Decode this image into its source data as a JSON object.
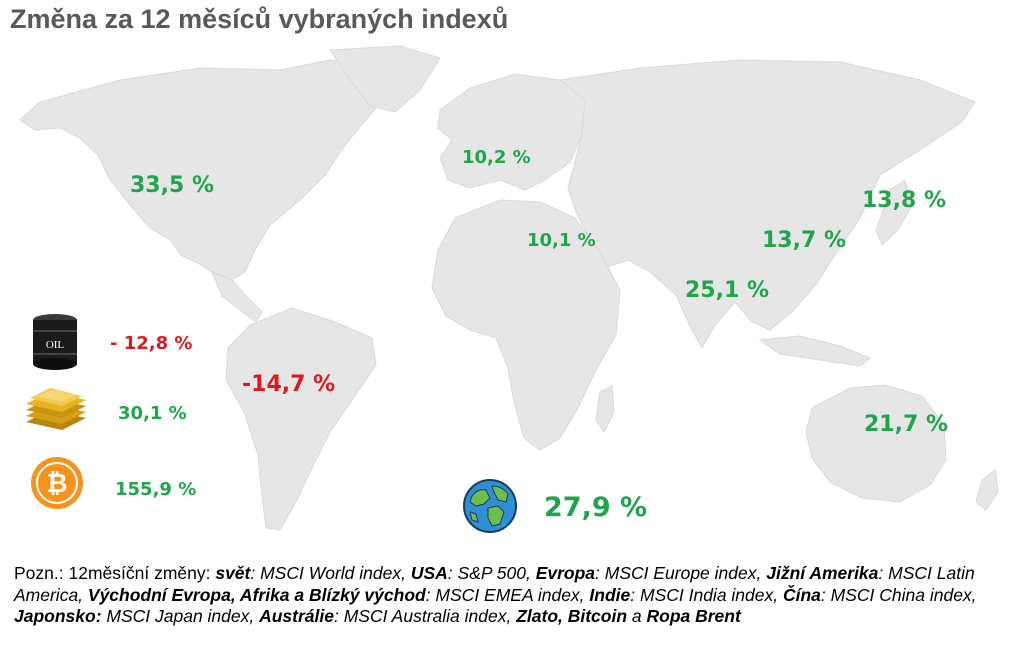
{
  "title": "Změna za 12 měsíců vybraných indexů",
  "colors": {
    "positive": "#1fa64a",
    "negative": "#e0181b",
    "land": "#e6e6e6",
    "title": "#595959"
  },
  "regions": {
    "usa": "33,5 %",
    "europe": "10,2 %",
    "emea": "10,1 %",
    "japan": "13,8 %",
    "china": "13,7 %",
    "india": "25,1 %",
    "latam": "-14,7 %",
    "australia": "21,7 %",
    "world": "27,9 %"
  },
  "commodities": {
    "oil": {
      "icon": "oil-barrel-icon",
      "icon_text": "OIL",
      "value": "- 12,8 %"
    },
    "gold": {
      "icon": "gold-bars-icon",
      "value": "30,1 %"
    },
    "bitcoin": {
      "icon": "bitcoin-icon",
      "value": "155,9 %"
    }
  },
  "world_icon": "globe-icon",
  "note": {
    "t1": "Pozn.: 12měsíční změny: ",
    "b1": "svět",
    "t2": ": MSCI World index, ",
    "b2": "USA",
    "t3": ": S&P 500, ",
    "b3": "Evropa",
    "t4": ": MSCI Europe index, ",
    "b4": "Jižní Amerika",
    "t5": ": MSCI Latin America, ",
    "b5": "Východní Evropa, Afrika a Blízký východ",
    "t6": ": MSCI EMEA index, ",
    "b6": "Indie",
    "t7": ": MSCI India index, ",
    "b7": "Čína",
    "t8": ": MSCI China index, ",
    "b8": "Japonsko:",
    "t9": " MSCI Japan index, ",
    "b9": "Austrálie",
    "t10": ": MSCI Australia index, ",
    "b10": "Zlato, Bitcoin",
    "t11": " a ",
    "b11": "Ropa Brent"
  }
}
